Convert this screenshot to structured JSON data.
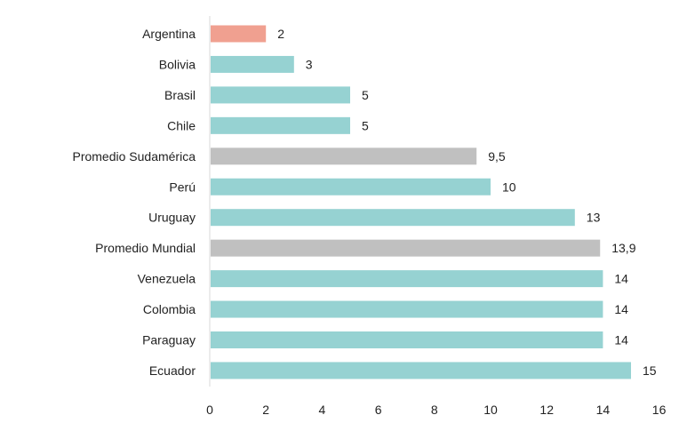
{
  "chart_data": {
    "type": "bar",
    "orientation": "horizontal",
    "categories": [
      "Argentina",
      "Bolivia",
      "Brasil",
      "Chile",
      "Promedio Sudamérica",
      "Perú",
      "Uruguay",
      "Promedio Mundial",
      "Venezuela",
      "Colombia",
      "Paraguay",
      "Ecuador"
    ],
    "values": [
      2,
      3,
      5,
      5,
      9.5,
      10,
      13,
      13.9,
      14,
      14,
      14,
      15
    ],
    "value_labels": [
      "2",
      "3",
      "5",
      "5",
      "9,5",
      "10",
      "13",
      "13,9",
      "14",
      "14",
      "14",
      "15"
    ],
    "bar_colors": [
      "#f0a090",
      "#96d2d2",
      "#96d2d2",
      "#96d2d2",
      "#c0c0c0",
      "#96d2d2",
      "#96d2d2",
      "#c0c0c0",
      "#96d2d2",
      "#96d2d2",
      "#96d2d2",
      "#96d2d2"
    ],
    "xlim": [
      0,
      16
    ],
    "xticks": [
      0,
      2,
      4,
      6,
      8,
      10,
      12,
      14,
      16
    ],
    "xtick_labels": [
      "0",
      "2",
      "4",
      "6",
      "8",
      "10",
      "12",
      "14",
      "16"
    ],
    "grid": false,
    "legend": "none",
    "title": "",
    "xlabel": "",
    "ylabel": ""
  }
}
